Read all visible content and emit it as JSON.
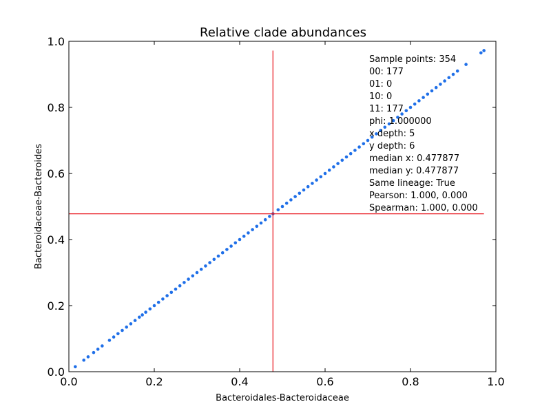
{
  "chart_data": {
    "type": "scatter",
    "title": "Relative clade abundances",
    "xlabel": "Bacteroidales-Bacteroidaceae",
    "ylabel": "Bacteroidaceae-Bacteroides",
    "xlim": [
      0.0,
      1.0
    ],
    "ylim": [
      0.0,
      1.0
    ],
    "xticks": [
      "0.0",
      "0.2",
      "0.4",
      "0.6",
      "0.8",
      "1.0"
    ],
    "yticks": [
      "0.0",
      "0.2",
      "0.4",
      "0.6",
      "0.8",
      "1.0"
    ],
    "grid": false,
    "point_color": "#1f6fe8",
    "line_color": "#e8141c",
    "median_x": 0.477877,
    "median_y": 0.477877,
    "points": [
      [
        0.015,
        0.015
      ],
      [
        0.035,
        0.035
      ],
      [
        0.045,
        0.045
      ],
      [
        0.058,
        0.058
      ],
      [
        0.068,
        0.068
      ],
      [
        0.078,
        0.078
      ],
      [
        0.095,
        0.095
      ],
      [
        0.105,
        0.105
      ],
      [
        0.115,
        0.115
      ],
      [
        0.125,
        0.125
      ],
      [
        0.135,
        0.135
      ],
      [
        0.145,
        0.145
      ],
      [
        0.155,
        0.155
      ],
      [
        0.165,
        0.165
      ],
      [
        0.172,
        0.172
      ],
      [
        0.18,
        0.18
      ],
      [
        0.19,
        0.19
      ],
      [
        0.2,
        0.2
      ],
      [
        0.21,
        0.21
      ],
      [
        0.22,
        0.22
      ],
      [
        0.23,
        0.23
      ],
      [
        0.24,
        0.24
      ],
      [
        0.25,
        0.25
      ],
      [
        0.26,
        0.26
      ],
      [
        0.27,
        0.27
      ],
      [
        0.28,
        0.28
      ],
      [
        0.29,
        0.29
      ],
      [
        0.3,
        0.3
      ],
      [
        0.31,
        0.31
      ],
      [
        0.32,
        0.32
      ],
      [
        0.33,
        0.33
      ],
      [
        0.34,
        0.34
      ],
      [
        0.35,
        0.35
      ],
      [
        0.36,
        0.36
      ],
      [
        0.37,
        0.37
      ],
      [
        0.38,
        0.38
      ],
      [
        0.39,
        0.39
      ],
      [
        0.4,
        0.4
      ],
      [
        0.41,
        0.41
      ],
      [
        0.42,
        0.42
      ],
      [
        0.43,
        0.43
      ],
      [
        0.44,
        0.44
      ],
      [
        0.45,
        0.45
      ],
      [
        0.46,
        0.46
      ],
      [
        0.47,
        0.47
      ],
      [
        0.478,
        0.478
      ],
      [
        0.49,
        0.49
      ],
      [
        0.5,
        0.5
      ],
      [
        0.51,
        0.51
      ],
      [
        0.52,
        0.52
      ],
      [
        0.53,
        0.53
      ],
      [
        0.54,
        0.54
      ],
      [
        0.55,
        0.55
      ],
      [
        0.56,
        0.56
      ],
      [
        0.57,
        0.57
      ],
      [
        0.58,
        0.58
      ],
      [
        0.59,
        0.59
      ],
      [
        0.6,
        0.6
      ],
      [
        0.61,
        0.61
      ],
      [
        0.62,
        0.62
      ],
      [
        0.63,
        0.63
      ],
      [
        0.64,
        0.64
      ],
      [
        0.65,
        0.65
      ],
      [
        0.66,
        0.66
      ],
      [
        0.67,
        0.67
      ],
      [
        0.68,
        0.68
      ],
      [
        0.69,
        0.69
      ],
      [
        0.7,
        0.7
      ],
      [
        0.71,
        0.71
      ],
      [
        0.72,
        0.72
      ],
      [
        0.73,
        0.73
      ],
      [
        0.74,
        0.74
      ],
      [
        0.75,
        0.75
      ],
      [
        0.76,
        0.76
      ],
      [
        0.77,
        0.77
      ],
      [
        0.78,
        0.78
      ],
      [
        0.79,
        0.79
      ],
      [
        0.8,
        0.8
      ],
      [
        0.81,
        0.81
      ],
      [
        0.82,
        0.82
      ],
      [
        0.83,
        0.83
      ],
      [
        0.84,
        0.84
      ],
      [
        0.85,
        0.85
      ],
      [
        0.86,
        0.86
      ],
      [
        0.87,
        0.87
      ],
      [
        0.88,
        0.88
      ],
      [
        0.89,
        0.89
      ],
      [
        0.9,
        0.9
      ],
      [
        0.91,
        0.91
      ],
      [
        0.93,
        0.93
      ],
      [
        0.965,
        0.965
      ],
      [
        0.972,
        0.972
      ]
    ],
    "annotations": [
      "Sample points: 354",
      "00: 177",
      "01: 0",
      "10: 0",
      "11: 177",
      "phi: 1.000000",
      "x depth: 5",
      "y depth: 6",
      "median x: 0.477877",
      "median y: 0.477877",
      "Same lineage:  True",
      "Pearson: 1.000, 0.000",
      "Spearman: 1.000, 0.000"
    ]
  }
}
